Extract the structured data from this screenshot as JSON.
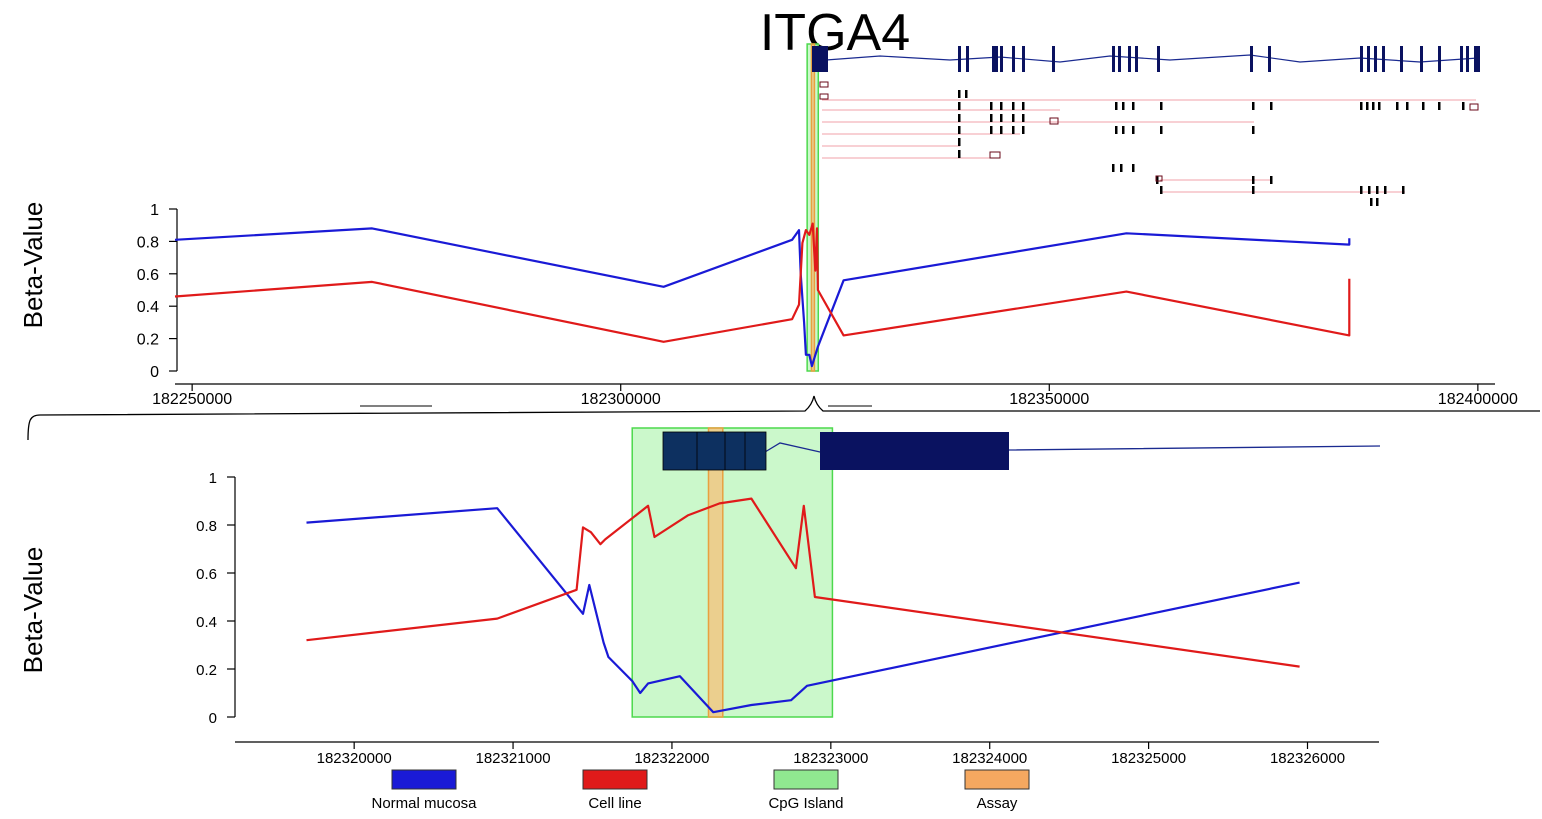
{
  "figure": {
    "title": "ITGA4",
    "ylabel": "Beta-Value"
  },
  "colors": {
    "normal": "#1a1ad6",
    "cellline": "#e01a1a",
    "cpg_fill": "#c5f7c5",
    "cpg_stroke": "#4dd94d",
    "assay_fill": "#f5c27a",
    "assay_stroke": "#e8a040",
    "gene_dark": "#0a1260",
    "gene_light": "#0d3060",
    "transcript_line": "#f0a0a8"
  },
  "legend": [
    {
      "label": "Normal mucosa",
      "color": "#1a1ad6"
    },
    {
      "label": "Cell line",
      "color": "#e01a1a"
    },
    {
      "label": "CpG Island",
      "color": "#90e890"
    },
    {
      "label": "Assay",
      "color": "#f5a860"
    }
  ],
  "chart_data": [
    {
      "type": "line",
      "title": "ITGA4",
      "ylabel": "Beta-Value",
      "xlim": [
        182248000,
        182402000
      ],
      "ylim": [
        0,
        1
      ],
      "x_ticks": [
        182250000,
        182300000,
        182350000,
        182400000
      ],
      "x_tick_labels": [
        "182250000",
        "182300000",
        "182350000",
        "182400000"
      ],
      "y_ticks": [
        0,
        0.2,
        0.4,
        0.6,
        0.8,
        1
      ],
      "y_tick_labels": [
        "0",
        "0.2",
        "0.4",
        "0.6",
        "0.8",
        "1"
      ],
      "cpg_island": [
        182321750,
        182323050
      ],
      "assay": [
        182322250,
        182322350
      ],
      "series": [
        {
          "name": "Normal mucosa",
          "x": [
            182248000,
            182271000,
            182305000,
            182320000,
            182320800,
            182321000,
            182321400,
            182321600,
            182322000,
            182322300,
            182323000,
            182326000,
            182359000,
            182385000,
            182385000
          ],
          "y": [
            0.81,
            0.88,
            0.52,
            0.81,
            0.87,
            0.6,
            0.3,
            0.1,
            0.1,
            0.03,
            0.15,
            0.56,
            0.85,
            0.78,
            0.82
          ]
        },
        {
          "name": "Cell line",
          "x": [
            182248000,
            182271000,
            182305000,
            182320000,
            182320800,
            182321200,
            182321600,
            182322000,
            182322400,
            182322700,
            182322900,
            182323000,
            182326000,
            182359000,
            182385000,
            182385000
          ],
          "y": [
            0.46,
            0.55,
            0.18,
            0.32,
            0.41,
            0.79,
            0.87,
            0.84,
            0.91,
            0.62,
            0.88,
            0.5,
            0.22,
            0.49,
            0.22,
            0.57
          ]
        }
      ]
    },
    {
      "type": "line",
      "ylabel": "Beta-Value",
      "xlim": [
        182319250,
        182326450
      ],
      "ylim": [
        0,
        1
      ],
      "x_ticks": [
        182320000,
        182321000,
        182322000,
        182323000,
        182324000,
        182325000,
        182326000
      ],
      "x_tick_labels": [
        "182320000",
        "182321000",
        "182322000",
        "182323000",
        "182324000",
        "182325000",
        "182326000"
      ],
      "y_ticks": [
        0,
        0.2,
        0.4,
        0.6,
        0.8,
        1
      ],
      "y_tick_labels": [
        "0",
        "0.2",
        "0.4",
        "0.6",
        "0.8",
        "1"
      ],
      "cpg_island": [
        182321750,
        182323010
      ],
      "assay": [
        182322230,
        182322320
      ],
      "series": [
        {
          "name": "Normal mucosa",
          "x": [
            182319700,
            182320900,
            182321440,
            182321480,
            182321570,
            182321600,
            182321750,
            182321800,
            182321850,
            182322050,
            182322260,
            182322500,
            182322750,
            182322850,
            182325950
          ],
          "y": [
            0.81,
            0.87,
            0.43,
            0.55,
            0.31,
            0.25,
            0.15,
            0.1,
            0.14,
            0.17,
            0.02,
            0.05,
            0.07,
            0.13,
            0.56
          ]
        },
        {
          "name": "Cell line",
          "x": [
            182319700,
            182320900,
            182321400,
            182321440,
            182321490,
            182321550,
            182321580,
            182321850,
            182321890,
            182322100,
            182322300,
            182322500,
            182322780,
            182322830,
            182322900,
            182325950
          ],
          "y": [
            0.32,
            0.41,
            0.53,
            0.79,
            0.77,
            0.72,
            0.74,
            0.88,
            0.75,
            0.84,
            0.89,
            0.91,
            0.62,
            0.88,
            0.5,
            0.21
          ]
        }
      ]
    }
  ]
}
